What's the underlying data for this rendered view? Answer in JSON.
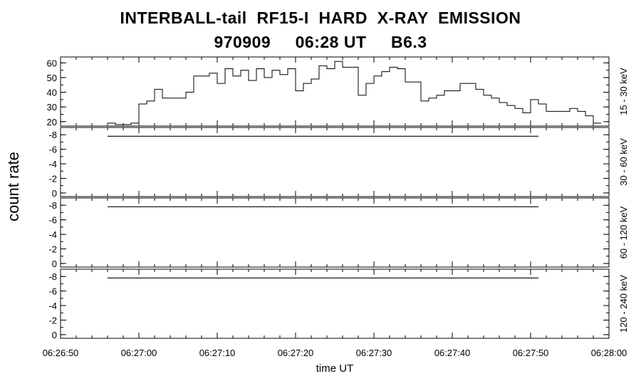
{
  "header": {
    "title_line1": "INTERBALL-tail  RF15-I  HARD  X-RAY  EMISSION",
    "title_line2": "970909     06:28 UT     B6.3"
  },
  "chart_data": {
    "type": "line",
    "title": "INTERBALL-tail  RF15-I  HARD  X-RAY  EMISSION",
    "subtitle": "970909     06:28 UT     B6.3",
    "xlabel": "time UT",
    "ylabel": "count rate",
    "xlim": [
      "06:26:50",
      "06:28:00"
    ],
    "x_ticks": [
      "06:26:50",
      "06:27:00",
      "06:27:10",
      "06:27:20",
      "06:27:30",
      "06:27:40",
      "06:27:50",
      "06:28:00"
    ],
    "step_seconds": 1,
    "x_start": "06:26:56",
    "panels": [
      {
        "label": "15 - 30 keV",
        "ylim": [
          17,
          64
        ],
        "y_ticks": [
          "20",
          "30",
          "40",
          "50",
          "60"
        ],
        "y_tick_values": [
          20,
          30,
          40,
          50,
          60
        ],
        "values": [
          19,
          18,
          18,
          19,
          32,
          34,
          42,
          36,
          36,
          36,
          40,
          51,
          51,
          53,
          46,
          56,
          51,
          55,
          48,
          56,
          50,
          55,
          52,
          56,
          41,
          46,
          49,
          58,
          56,
          61,
          57,
          57,
          38,
          46,
          51,
          54,
          57,
          56,
          47,
          47,
          34,
          36,
          38,
          41,
          41,
          46,
          46,
          42,
          38,
          36,
          33,
          31,
          29,
          26,
          35,
          32,
          27,
          27,
          27,
          29,
          27,
          24,
          19
        ]
      },
      {
        "label": "30 - 60 keV",
        "ylim": [
          0.5,
          -9
        ],
        "y_ticks": [
          "-8",
          "-6",
          "-4",
          "-2",
          "0"
        ],
        "y_tick_values": [
          -8,
          -6,
          -4,
          -2,
          0
        ],
        "values": [
          -7.8,
          -7.8
        ],
        "x": [
          "06:26:56",
          "06:27:51"
        ]
      },
      {
        "label": "60 - 120 keV",
        "ylim": [
          0.5,
          -9
        ],
        "y_ticks": [
          "-8",
          "-6",
          "-4",
          "-2",
          "0"
        ],
        "y_tick_values": [
          -8,
          -6,
          -4,
          -2,
          0
        ],
        "values": [
          -7.8,
          -7.8
        ],
        "x": [
          "06:26:56",
          "06:27:51"
        ]
      },
      {
        "label": "120 - 240 keV",
        "ylim": [
          0.5,
          -9
        ],
        "y_ticks": [
          "-8",
          "-6",
          "-4",
          "-2",
          "0"
        ],
        "y_tick_values": [
          -8,
          -6,
          -4,
          -2,
          0
        ],
        "values": [
          -7.8,
          -7.8
        ],
        "x": [
          "06:26:56",
          "06:27:51"
        ]
      }
    ],
    "grid": false,
    "line_color": "#000000"
  }
}
